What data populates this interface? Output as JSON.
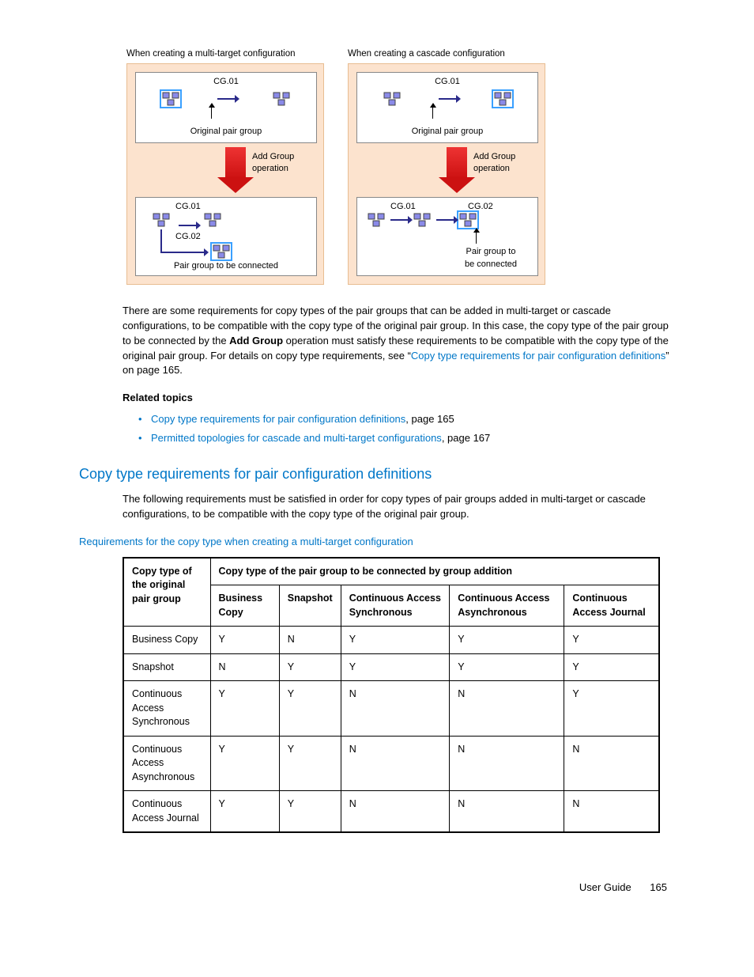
{
  "diagrams": {
    "left": {
      "title": "When creating a multi-target configuration",
      "cg01": "CG.01",
      "cg02": "CG.02",
      "original": "Original pair group",
      "add_group": "Add Group\noperation",
      "bottom": "Pair group to be connected"
    },
    "right": {
      "title": "When creating a cascade configuration",
      "cg01": "CG.01",
      "cg02": "CG.02",
      "original": "Original pair group",
      "add_group": "Add Group\noperation",
      "bottom": "Pair group to\nbe connected"
    },
    "colors": {
      "bg_peach": "#fce3ce",
      "node_fill": "#8a8ae8",
      "arrow_blue": "#2a2a8a",
      "red_arrow": "#c11",
      "highlight": "#3aa0ff"
    }
  },
  "para1_a": "There are some requirements for copy types of  the pair groups that can be added in multi-target or cascade configurations, to be compatible with the copy type of the original pair group. In this case, the copy type of the pair group to be connected by the ",
  "para1_bold": "Add Group",
  "para1_b": " operation must satisfy these requirements to be compatible with the copy type of the original pair group. For details on copy type requirements, see “",
  "para1_link": "Copy type requirements for pair configuration definitions",
  "para1_c": "” on page 165.",
  "related_heading": "Related topics",
  "related": [
    {
      "link": "Copy type requirements for pair configuration definitions",
      "tail": ", page 165"
    },
    {
      "link": "Permitted topologies for cascade and multi-target configurations",
      "tail": ", page 167"
    }
  ],
  "section_heading": "Copy type requirements for pair configuration definitions",
  "section_para": "The following requirements must be satisfied in order for copy types of pair groups added in multi-target or cascade configurations, to be compatible with the copy type of the original pair group.",
  "table": {
    "caption": "Requirements for the copy type when creating a multi-target configuration",
    "row_header": "Copy type of the original pair group",
    "span_header": "Copy type of the pair group to be connected by group addition",
    "columns": [
      "Business Copy",
      "Snapshot",
      "Continuous Access Synchronous",
      "Continuous Access Asynchronous",
      "Continuous Access Journal"
    ],
    "rows": [
      {
        "label": "Business Copy",
        "cells": [
          "Y",
          "N",
          "Y",
          "Y",
          "Y"
        ]
      },
      {
        "label": "Snapshot",
        "cells": [
          "N",
          "Y",
          "Y",
          "Y",
          "Y"
        ]
      },
      {
        "label": "Continuous Access Synchronous",
        "cells": [
          "Y",
          "Y",
          "N",
          "N",
          "Y"
        ]
      },
      {
        "label": "Continuous Access Asynchronous",
        "cells": [
          "Y",
          "Y",
          "N",
          "N",
          "N"
        ]
      },
      {
        "label": "Continuous Access Journal",
        "cells": [
          "Y",
          "Y",
          "N",
          "N",
          "N"
        ]
      }
    ]
  },
  "footer": {
    "label": "User Guide",
    "page": "165"
  }
}
